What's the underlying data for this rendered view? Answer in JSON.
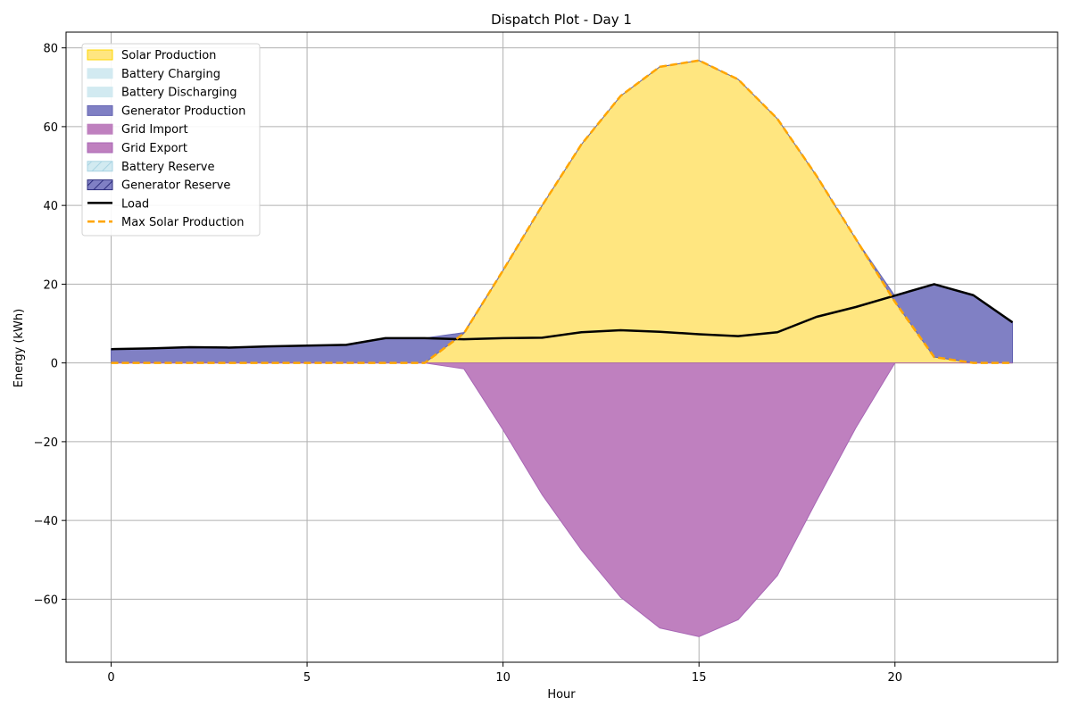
{
  "chart_data": {
    "type": "area",
    "title": "Dispatch Plot - Day 1",
    "xlabel": "Hour",
    "ylabel": "Energy (kWh)",
    "xlim": [
      -1.15,
      24.15
    ],
    "ylim": [
      -76,
      84
    ],
    "grid": true,
    "legend_position": "top-left",
    "x": [
      0,
      1,
      2,
      3,
      4,
      5,
      6,
      7,
      8,
      9,
      10,
      11,
      12,
      13,
      14,
      15,
      16,
      17,
      18,
      19,
      20,
      21,
      22,
      23
    ],
    "x_ticks": [
      0,
      5,
      10,
      15,
      20
    ],
    "y_ticks": [
      -60,
      -40,
      -20,
      0,
      20,
      40,
      60,
      80
    ],
    "series": [
      {
        "name": "Solar Production",
        "kind": "area",
        "color": "#FFE680",
        "edge_color": "#FFD700",
        "values": [
          0,
          0,
          0,
          0,
          0,
          0,
          0,
          0,
          0,
          7.5,
          23.5,
          40.0,
          55.5,
          67.8,
          75.2,
          76.8,
          72.0,
          62.0,
          47.5,
          31.5,
          15.5,
          1.5,
          0,
          0
        ]
      },
      {
        "name": "Battery Charging",
        "kind": "area",
        "color": "#D2EAF1",
        "values": [
          0,
          0,
          0,
          0,
          0,
          0,
          0,
          0,
          0,
          0,
          0,
          0,
          0,
          0,
          0,
          0,
          0,
          0,
          0,
          0,
          0,
          0,
          0,
          0
        ]
      },
      {
        "name": "Battery Discharging",
        "kind": "area",
        "color": "#D2EAF1",
        "values": [
          0,
          0,
          0,
          0,
          0,
          0,
          0,
          0,
          0,
          0,
          0,
          0,
          0,
          0,
          0,
          0,
          0,
          0,
          0,
          0,
          0,
          0,
          0,
          0
        ]
      },
      {
        "name": "Generator Production",
        "kind": "area",
        "color": "#8080C4",
        "edge_color": "#6666B3",
        "values": [
          3.5,
          3.7,
          4.0,
          3.9,
          4.2,
          4.4,
          4.6,
          6.3,
          6.3,
          0.2,
          0,
          0,
          0,
          0,
          0,
          0,
          0,
          0,
          0,
          0,
          1.5,
          18.5,
          17.2,
          10.3
        ]
      },
      {
        "name": "Grid Import",
        "kind": "area",
        "color": "#BF80BF",
        "values": [
          0,
          0,
          0,
          0,
          0,
          0,
          0,
          0,
          0,
          0,
          0,
          0,
          0,
          0,
          0,
          0,
          0,
          0,
          0,
          0,
          0,
          0,
          0,
          0
        ]
      },
      {
        "name": "Grid Export",
        "kind": "area",
        "color": "#BF80BF",
        "edge_color": "#A866B5",
        "values": [
          0,
          0,
          0,
          0,
          0,
          0,
          0,
          0,
          0,
          -1.5,
          -17.0,
          -33.5,
          -47.5,
          -59.5,
          -67.3,
          -69.5,
          -65.2,
          -54.0,
          -35.0,
          -16.5,
          0,
          0,
          0,
          0
        ]
      },
      {
        "name": "Battery Reserve",
        "kind": "hatch",
        "color": "#D2EAF1",
        "values": [
          0,
          0,
          0,
          0,
          0,
          0,
          0,
          0,
          0,
          0,
          0,
          0,
          0,
          0,
          0,
          0,
          0,
          0,
          0,
          0,
          0,
          0,
          0,
          0
        ]
      },
      {
        "name": "Generator Reserve",
        "kind": "hatch",
        "color": "#8080C4",
        "values": [
          0,
          0,
          0,
          0,
          0,
          0,
          0,
          0,
          0,
          0,
          0,
          0,
          0,
          0,
          0,
          0,
          0,
          0,
          0,
          0,
          0,
          0,
          0,
          0
        ]
      },
      {
        "name": "Load",
        "kind": "line",
        "color": "#000000",
        "values": [
          3.5,
          3.7,
          4.0,
          3.9,
          4.2,
          4.4,
          4.6,
          6.3,
          6.3,
          6.0,
          6.3,
          6.4,
          7.8,
          8.3,
          7.9,
          7.3,
          6.8,
          7.8,
          11.7,
          14.2,
          17.1,
          20.0,
          17.2,
          10.3
        ]
      },
      {
        "name": "Max Solar Production",
        "kind": "dashed",
        "color": "#FFA500",
        "values": [
          0,
          0,
          0,
          0,
          0,
          0,
          0,
          0,
          0,
          7.5,
          23.5,
          40.0,
          55.5,
          67.8,
          75.2,
          76.8,
          72.0,
          62.0,
          47.5,
          31.5,
          15.5,
          1.5,
          0,
          0
        ]
      }
    ]
  }
}
